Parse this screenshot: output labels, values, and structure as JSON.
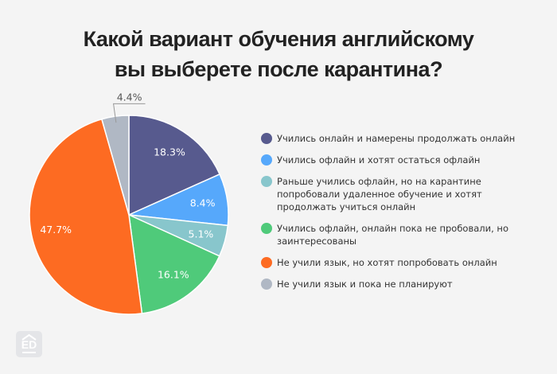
{
  "chart_data": {
    "type": "pie",
    "title": "Какой вариант обучения английскому вы выберете после карантина?",
    "title_lines": [
      "Какой вариант обучения английскому",
      "вы выберете после карантина?"
    ],
    "slices": [
      {
        "label": "Учились онлайн и намерены продолжать онлайн",
        "value": 18.3,
        "display": "18.3%",
        "color": "#575a8e"
      },
      {
        "label": "Учились офлайн и хотят остаться офлайн",
        "value": 8.4,
        "display": "8.4%",
        "color": "#56a8fb"
      },
      {
        "label": "Раньше учились офлайн, но на карантине попробовали удаленное обучение и хотят продолжать учиться онлайн",
        "value": 5.1,
        "display": "5.1%",
        "color": "#88c6cc"
      },
      {
        "label": "Учились офлайн, онлайн пока не пробовали, но заинтересованы",
        "value": 16.1,
        "display": "16.1%",
        "color": "#4fca7a"
      },
      {
        "label": "Не учили язык, но хотят попробовать онлайн",
        "value": 47.7,
        "display": "47.7%",
        "color": "#fd6b22"
      },
      {
        "label": "Не учили язык и пока не планируют",
        "value": 4.4,
        "display": "4.4%",
        "color": "#b0b8c4"
      }
    ],
    "legend_position": "right",
    "start": "top",
    "direction": "clockwise"
  },
  "logo_text": "ED"
}
